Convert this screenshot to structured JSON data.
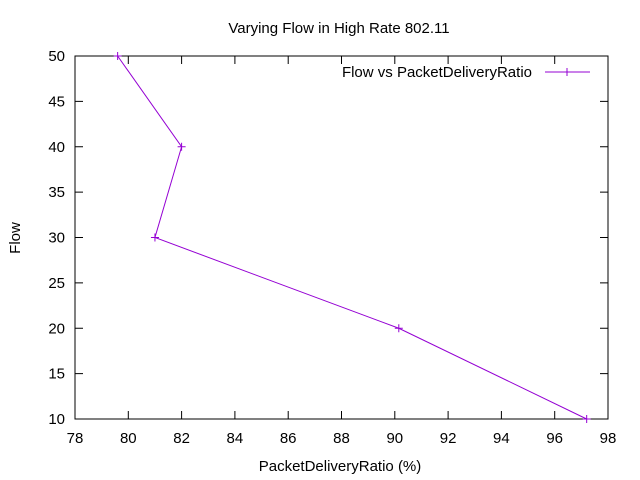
{
  "chart_data": {
    "type": "line",
    "title": "Varying Flow in High Rate 802.11",
    "xlabel": "PacketDeliveryRatio (%)",
    "ylabel": "Flow",
    "xlim": [
      78,
      98
    ],
    "ylim": [
      10,
      50
    ],
    "xticks": [
      "78",
      "80",
      "82",
      "84",
      "86",
      "88",
      "90",
      "92",
      "94",
      "96",
      "98"
    ],
    "yticks": [
      "10",
      "15",
      "20",
      "25",
      "30",
      "35",
      "40",
      "45",
      "50"
    ],
    "grid": false,
    "legend_position": "top-right",
    "series": [
      {
        "name": "Flow vs PacketDeliveryRatio",
        "color": "#9400d3",
        "marker": "plus",
        "points": [
          {
            "x": 79.6,
            "y": 50
          },
          {
            "x": 82.0,
            "y": 40
          },
          {
            "x": 81.0,
            "y": 30
          },
          {
            "x": 90.15,
            "y": 20
          },
          {
            "x": 97.2,
            "y": 10
          }
        ]
      }
    ]
  }
}
